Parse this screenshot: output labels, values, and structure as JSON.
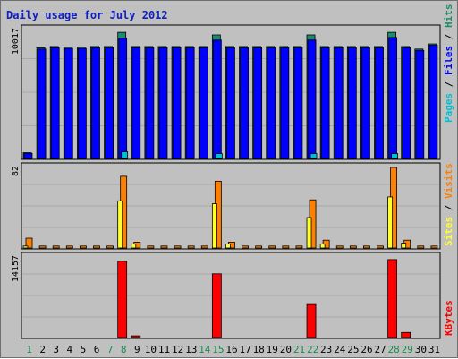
{
  "page": {
    "title": "Daily usage for July 2012"
  },
  "colors": {
    "background": "#c0c0c0",
    "plot_bg": "#c0c0c0",
    "grid": "#a8a8a8",
    "hits": "#1e8c6a",
    "files": "#0000ff",
    "pages": "#00c0d0",
    "visits": "#ff8000",
    "sites": "#ffff30",
    "kbytes": "#ff0000",
    "title": "#1020c0",
    "day_green": "#1a8a50",
    "day_black": "#000000"
  },
  "chart_data": [
    {
      "type": "bar",
      "panel": "hits_files_pages",
      "y_max_label": "10017",
      "ylim": [
        0,
        10017
      ],
      "legend": [
        "Pages",
        "Files",
        "Hits"
      ],
      "series": [
        {
          "name": "Hits",
          "values": [
            450,
            8600,
            8700,
            8650,
            8650,
            8700,
            8700,
            9800,
            8700,
            8700,
            8700,
            8700,
            8700,
            8700,
            9600,
            8700,
            8700,
            8700,
            8700,
            8700,
            8700,
            9600,
            8700,
            8700,
            8700,
            8700,
            8700,
            9800,
            8700,
            8500,
            8900
          ]
        },
        {
          "name": "Files",
          "values": [
            400,
            8500,
            8600,
            8550,
            8550,
            8600,
            8600,
            9350,
            8600,
            8600,
            8600,
            8600,
            8600,
            8600,
            9200,
            8600,
            8600,
            8600,
            8600,
            8600,
            8600,
            9200,
            8600,
            8600,
            8600,
            8600,
            8600,
            9400,
            8600,
            8400,
            8800
          ]
        },
        {
          "name": "Pages",
          "values": [
            60,
            0,
            0,
            0,
            0,
            0,
            0,
            520,
            0,
            0,
            0,
            0,
            0,
            0,
            380,
            0,
            0,
            0,
            0,
            0,
            0,
            380,
            0,
            0,
            0,
            0,
            0,
            380,
            0,
            0,
            0
          ]
        }
      ]
    },
    {
      "type": "bar",
      "panel": "sites_visits",
      "y_max_label": "82",
      "ylim": [
        0,
        82
      ],
      "legend": [
        "Sites",
        "Visits"
      ],
      "series": [
        {
          "name": "Visits",
          "values": [
            10,
            2,
            2,
            2,
            2,
            2,
            2,
            73,
            6,
            2,
            2,
            2,
            2,
            2,
            68,
            6,
            2,
            2,
            2,
            2,
            2,
            49,
            8,
            2,
            2,
            2,
            2,
            82,
            8,
            2,
            2
          ]
        },
        {
          "name": "Sites",
          "values": [
            2,
            0,
            0,
            0,
            0,
            0,
            0,
            48,
            4,
            0,
            0,
            0,
            0,
            0,
            45,
            4,
            0,
            0,
            0,
            0,
            0,
            31,
            4,
            0,
            0,
            0,
            0,
            52,
            5,
            0,
            0
          ]
        }
      ]
    },
    {
      "type": "bar",
      "panel": "kbytes",
      "y_max_label": "14157",
      "ylim": [
        0,
        14157
      ],
      "legend": [
        "KBytes"
      ],
      "series": [
        {
          "name": "KBytes",
          "values": [
            150,
            0,
            150,
            150,
            0,
            0,
            0,
            13400,
            300,
            0,
            150,
            0,
            0,
            0,
            11200,
            150,
            150,
            0,
            0,
            0,
            150,
            5800,
            150,
            0,
            0,
            0,
            0,
            13700,
            900,
            0,
            0
          ]
        }
      ]
    }
  ],
  "x_axis": {
    "days": [
      "1",
      "2",
      "3",
      "4",
      "5",
      "6",
      "7",
      "8",
      "9",
      "10",
      "11",
      "12",
      "13",
      "14",
      "15",
      "16",
      "17",
      "18",
      "19",
      "20",
      "21",
      "22",
      "23",
      "24",
      "25",
      "26",
      "27",
      "28",
      "29",
      "30",
      "31"
    ],
    "weekend_days": [
      "1",
      "7",
      "8",
      "14",
      "15",
      "21",
      "22",
      "28",
      "29"
    ]
  }
}
